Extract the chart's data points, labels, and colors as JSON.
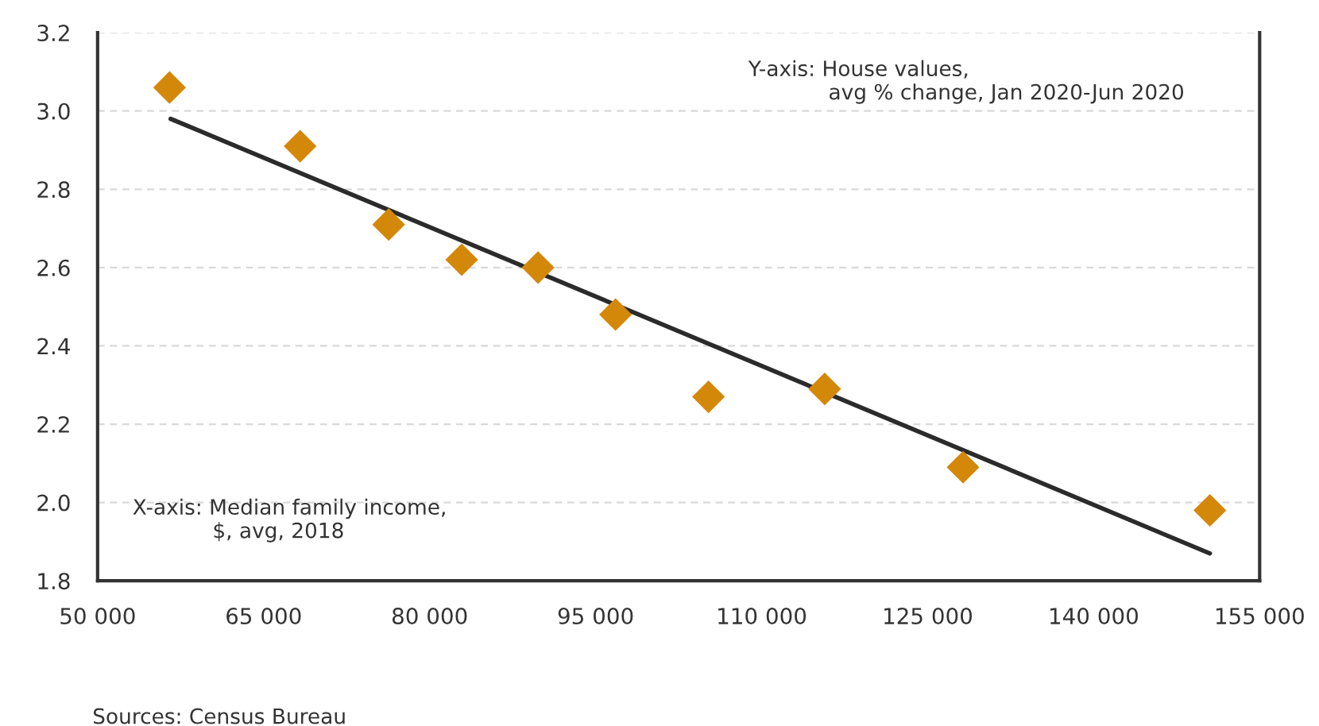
{
  "chart_data": {
    "type": "scatter",
    "xlim": [
      50000,
      155000
    ],
    "xticks": [
      {
        "value": 50000,
        "label": "50 000"
      },
      {
        "value": 65000,
        "label": "65 000"
      },
      {
        "value": 80000,
        "label": "80 000"
      },
      {
        "value": 95000,
        "label": "95 000"
      },
      {
        "value": 110000,
        "label": "110 000"
      },
      {
        "value": 125000,
        "label": "125 000"
      },
      {
        "value": 140000,
        "label": "140 000"
      },
      {
        "value": 155000,
        "label": "155 000"
      }
    ],
    "ylim": [
      1.8,
      3.2
    ],
    "yticks": [
      {
        "value": 1.8,
        "label": "1.8"
      },
      {
        "value": 2.0,
        "label": "2.0"
      },
      {
        "value": 2.2,
        "label": "2.2"
      },
      {
        "value": 2.4,
        "label": "2.4"
      },
      {
        "value": 2.6,
        "label": "2.6"
      },
      {
        "value": 2.8,
        "label": "2.8"
      },
      {
        "value": 3.0,
        "label": "3.0"
      },
      {
        "value": 3.2,
        "label": "3.2"
      }
    ],
    "grid": "y",
    "series": [
      {
        "marker": "diamond",
        "color": "#d4880a",
        "x": [
          56500,
          68300,
          76300,
          82900,
          89800,
          96800,
          105200,
          115700,
          128200,
          150500
        ],
        "values": [
          3.06,
          2.91,
          2.71,
          2.62,
          2.6,
          2.48,
          2.27,
          2.29,
          2.09,
          1.98
        ]
      },
      {
        "type": "line",
        "color": "#2b2b2b",
        "x": [
          56600,
          150500
        ],
        "values": [
          2.98,
          1.87
        ]
      }
    ],
    "annotations": [
      "Y-axis: House values,\n            avg % change, Jan 2020-Jun 2020",
      "X-axis: Median family income,\n            $, avg, 2018",
      "Sources: Census Bureau"
    ]
  }
}
